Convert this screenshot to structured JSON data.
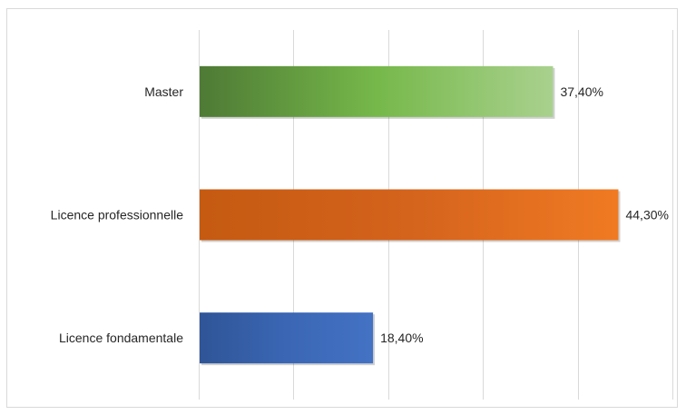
{
  "chart_data": {
    "type": "bar",
    "orientation": "horizontal",
    "categories": [
      "Master",
      "Licence professionnelle",
      "Licence fondamentale"
    ],
    "values": [
      37.4,
      44.3,
      18.4
    ],
    "value_labels": [
      "37,40%",
      "44,30%",
      "18,40%"
    ],
    "colors": [
      "#70ad47",
      "#ed7d31",
      "#4472c4"
    ],
    "gradients": [
      [
        "#4e7a35",
        "#76b84a",
        "#a9d18e"
      ],
      [
        "#c55a11",
        "#d4631c",
        "#f07a23"
      ],
      [
        "#2f5597",
        "#3a66b4",
        "#4472c4"
      ]
    ],
    "xlim": [
      0,
      50
    ],
    "x_gridlines": [
      0,
      10,
      20,
      30,
      40,
      50
    ],
    "grid": true,
    "title": "",
    "xlabel": "",
    "ylabel": "",
    "legend": "none"
  }
}
